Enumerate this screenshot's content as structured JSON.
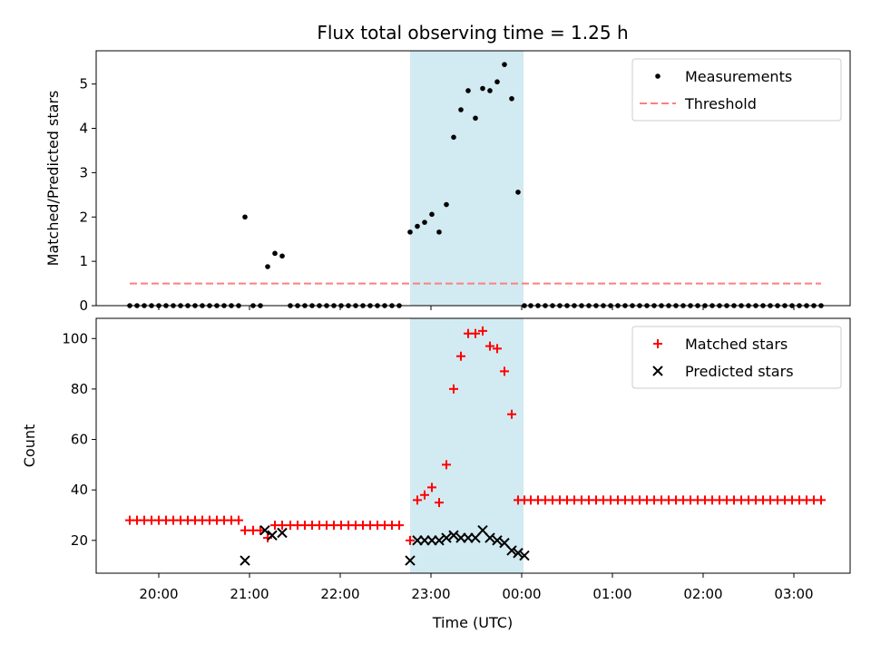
{
  "chart_data": {
    "type": "scatter",
    "title": "Flux total observing time = 1.25 h",
    "xlabel": "Time (UTC)",
    "x_ticks": [
      "20:00",
      "21:00",
      "22:00",
      "23:00",
      "00:00",
      "01:00",
      "02:00",
      "03:00"
    ],
    "highlight_region": {
      "start_hours": 22.77,
      "end_hours": 24.02,
      "color": "#add8e6"
    },
    "panels": [
      {
        "ylabel": "Matched/Predicted stars",
        "ylim": [
          0,
          5.75
        ],
        "yticks": [
          0,
          1,
          2,
          3,
          4,
          5
        ],
        "legend_position": "top-right",
        "series": [
          {
            "name": "Measurements",
            "marker": "dot",
            "color": "#000000",
            "x_hours": [
              19.68,
              19.76,
              19.84,
              19.92,
              20.0,
              20.08,
              20.16,
              20.24,
              20.32,
              20.4,
              20.48,
              20.56,
              20.64,
              20.72,
              20.8,
              20.88,
              20.95,
              21.04,
              21.12,
              21.2,
              21.28,
              21.36,
              21.45,
              21.53,
              21.61,
              21.69,
              21.77,
              21.85,
              21.93,
              22.01,
              22.09,
              22.17,
              22.25,
              22.33,
              22.41,
              22.49,
              22.57,
              22.65,
              22.77,
              22.85,
              22.93,
              23.01,
              23.09,
              23.17,
              23.25,
              23.33,
              23.41,
              23.49,
              23.57,
              23.65,
              23.73,
              23.81,
              23.89,
              23.96,
              24.03,
              24.1,
              24.18,
              24.26,
              24.34,
              24.42,
              24.5,
              24.58,
              24.66,
              24.74,
              24.82,
              24.9,
              24.98,
              25.06,
              25.14,
              25.22,
              25.3,
              25.38,
              25.46,
              25.54,
              25.62,
              25.7,
              25.78,
              25.86,
              25.94,
              26.02,
              26.1,
              26.18,
              26.26,
              26.34,
              26.42,
              26.5,
              26.58,
              26.66,
              26.74,
              26.82,
              26.9,
              26.98,
              27.06,
              27.14,
              27.22,
              27.3
            ],
            "y": [
              0,
              0,
              0,
              0,
              0,
              0,
              0,
              0,
              0,
              0,
              0,
              0,
              0,
              0,
              0,
              0,
              2.0,
              0,
              0,
              0.88,
              1.18,
              1.12,
              0,
              0,
              0,
              0,
              0,
              0,
              0,
              0,
              0,
              0,
              0,
              0,
              0,
              0,
              0,
              0,
              1.66,
              1.79,
              1.88,
              2.06,
              1.66,
              2.28,
              3.8,
              4.42,
              4.85,
              4.23,
              4.9,
              4.85,
              5.05,
              5.44,
              4.67,
              2.56,
              0,
              0,
              0,
              0,
              0,
              0,
              0,
              0,
              0,
              0,
              0,
              0,
              0,
              0,
              0,
              0,
              0,
              0,
              0,
              0,
              0,
              0,
              0,
              0,
              0,
              0,
              0,
              0,
              0,
              0,
              0,
              0,
              0,
              0,
              0,
              0,
              0,
              0,
              0,
              0,
              0,
              0
            ]
          },
          {
            "name": "Threshold",
            "marker": "dashed-line",
            "color": "#ff7f7f",
            "x_hours": [
              19.68,
              27.3
            ],
            "y": [
              0.5,
              0.5
            ]
          }
        ]
      },
      {
        "ylabel": "Count",
        "ylim": [
          7,
          108
        ],
        "yticks": [
          20,
          40,
          60,
          80,
          100
        ],
        "legend_position": "top-right",
        "series": [
          {
            "name": "Matched stars",
            "marker": "plus",
            "color": "#ff0000",
            "x_hours": [
              19.68,
              19.76,
              19.84,
              19.92,
              20.0,
              20.08,
              20.16,
              20.24,
              20.32,
              20.4,
              20.48,
              20.56,
              20.64,
              20.72,
              20.8,
              20.88,
              20.95,
              21.04,
              21.12,
              21.2,
              21.28,
              21.36,
              21.45,
              21.53,
              21.61,
              21.69,
              21.77,
              21.85,
              21.93,
              22.01,
              22.09,
              22.17,
              22.25,
              22.33,
              22.41,
              22.49,
              22.57,
              22.65,
              22.77,
              22.85,
              22.93,
              23.01,
              23.09,
              23.17,
              23.25,
              23.33,
              23.41,
              23.49,
              23.57,
              23.65,
              23.73,
              23.81,
              23.89,
              23.96,
              24.03,
              24.1,
              24.18,
              24.26,
              24.34,
              24.42,
              24.5,
              24.58,
              24.66,
              24.74,
              24.82,
              24.9,
              24.98,
              25.06,
              25.14,
              25.22,
              25.3,
              25.38,
              25.46,
              25.54,
              25.62,
              25.7,
              25.78,
              25.86,
              25.94,
              26.02,
              26.1,
              26.18,
              26.26,
              26.34,
              26.42,
              26.5,
              26.58,
              26.66,
              26.74,
              26.82,
              26.9,
              26.98,
              27.06,
              27.14,
              27.22,
              27.3
            ],
            "y": [
              28,
              28,
              28,
              28,
              28,
              28,
              28,
              28,
              28,
              28,
              28,
              28,
              28,
              28,
              28,
              28,
              24,
              24,
              24,
              21,
              26,
              26,
              26,
              26,
              26,
              26,
              26,
              26,
              26,
              26,
              26,
              26,
              26,
              26,
              26,
              26,
              26,
              26,
              20,
              36,
              38,
              41,
              35,
              50,
              80,
              93,
              102,
              102,
              103,
              97,
              96,
              87,
              70,
              36,
              36,
              36,
              36,
              36,
              36,
              36,
              36,
              36,
              36,
              36,
              36,
              36,
              36,
              36,
              36,
              36,
              36,
              36,
              36,
              36,
              36,
              36,
              36,
              36,
              36,
              36,
              36,
              36,
              36,
              36,
              36,
              36,
              36,
              36,
              36,
              36,
              36,
              36,
              36,
              36,
              36,
              36
            ]
          },
          {
            "name": "Predicted stars",
            "marker": "x",
            "color": "#000000",
            "x_hours": [
              20.95,
              21.17,
              21.25,
              21.36,
              22.77,
              22.85,
              22.93,
              23.01,
              23.09,
              23.17,
              23.25,
              23.33,
              23.41,
              23.49,
              23.57,
              23.65,
              23.73,
              23.81,
              23.89,
              23.96,
              24.03
            ],
            "y": [
              12,
              24,
              22,
              23,
              12,
              20,
              20,
              20,
              20,
              21,
              22,
              21,
              21,
              21,
              24,
              21,
              20,
              19,
              16,
              15,
              14
            ]
          }
        ]
      }
    ]
  }
}
